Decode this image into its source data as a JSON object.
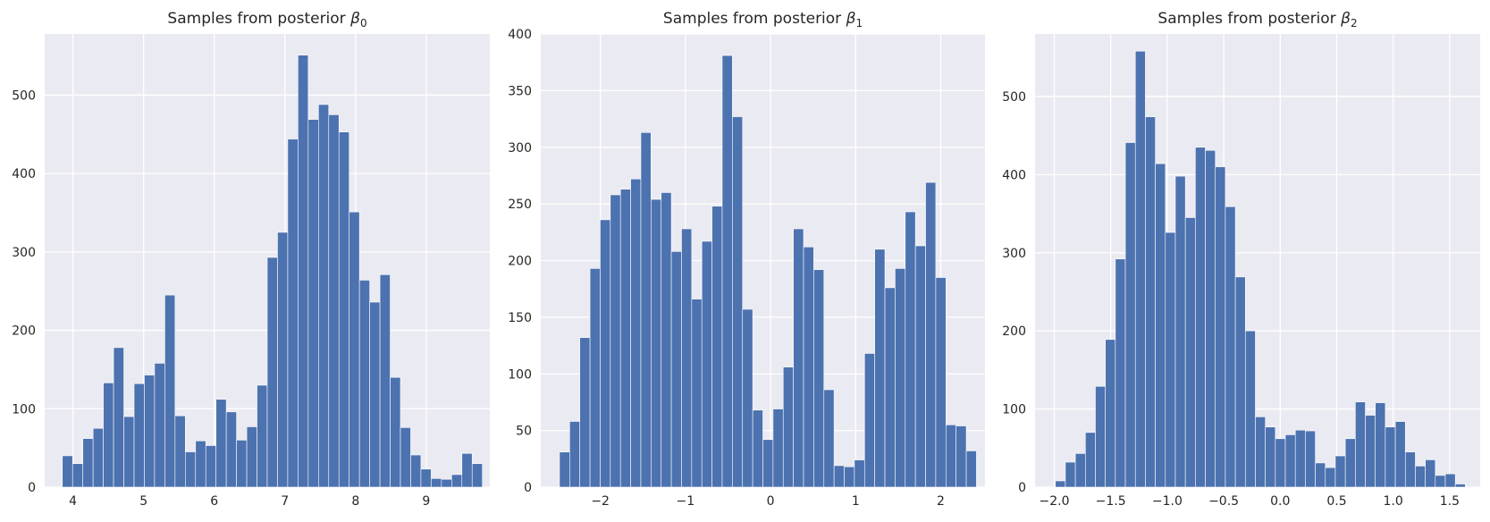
{
  "colors": {
    "bar": "#4c72b0",
    "plot_background": "#eaeaf2",
    "grid": "#ffffff",
    "text": "#262626"
  },
  "chart_data": [
    {
      "type": "bar",
      "title": {
        "prefix": "Samples from posterior ",
        "symbol": "β",
        "subscript": "0"
      },
      "grid": true,
      "xlim": [
        3.6,
        9.9
      ],
      "ylim": [
        0,
        578
      ],
      "xticks": [
        4,
        5,
        6,
        7,
        8,
        9
      ],
      "xtick_labels": [
        "4",
        "5",
        "6",
        "7",
        "8",
        "9"
      ],
      "yticks": [
        0,
        100,
        200,
        300,
        400,
        500
      ],
      "ytick_labels": [
        "0",
        "100",
        "200",
        "300",
        "400",
        "500"
      ],
      "bin_start": 3.85,
      "bin_width": 0.145,
      "values": [
        40,
        30,
        62,
        75,
        133,
        178,
        90,
        132,
        143,
        158,
        245,
        91,
        45,
        59,
        53,
        112,
        96,
        60,
        77,
        130,
        293,
        325,
        444,
        551,
        469,
        488,
        475,
        453,
        351,
        264,
        236,
        271,
        140,
        76,
        41,
        23,
        11,
        10,
        16,
        43,
        30
      ]
    },
    {
      "type": "bar",
      "title": {
        "prefix": "Samples from posterior ",
        "symbol": "β",
        "subscript": "1"
      },
      "grid": true,
      "xlim": [
        -2.7,
        2.52
      ],
      "ylim": [
        0,
        400
      ],
      "xticks": [
        -2,
        -1,
        0,
        1,
        2
      ],
      "xtick_labels": [
        "−2",
        "−1",
        "0",
        "1",
        "2"
      ],
      "yticks": [
        0,
        50,
        100,
        150,
        200,
        250,
        300,
        350,
        400
      ],
      "ytick_labels": [
        "0",
        "50",
        "100",
        "150",
        "200",
        "250",
        "300",
        "350",
        "400"
      ],
      "bin_start": -2.48,
      "bin_width": 0.1195,
      "values": [
        31,
        58,
        132,
        193,
        236,
        258,
        263,
        272,
        313,
        254,
        260,
        208,
        228,
        166,
        217,
        248,
        381,
        327,
        157,
        68,
        42,
        69,
        106,
        228,
        212,
        192,
        86,
        19,
        18,
        24,
        118,
        210,
        176,
        193,
        243,
        213,
        269,
        185,
        55,
        54,
        32
      ]
    },
    {
      "type": "bar",
      "title": {
        "prefix": "Samples from posterior ",
        "symbol": "β",
        "subscript": "2"
      },
      "grid": true,
      "xlim": [
        -2.17,
        1.77
      ],
      "ylim": [
        0,
        580
      ],
      "xticks": [
        -2.0,
        -1.5,
        -1.0,
        -0.5,
        0.0,
        0.5,
        1.0,
        1.5
      ],
      "xtick_labels": [
        "−2.0",
        "−1.5",
        "−1.0",
        "−0.5",
        "0.0",
        "0.5",
        "1.0",
        "1.5"
      ],
      "yticks": [
        0,
        100,
        200,
        300,
        400,
        500
      ],
      "ytick_labels": [
        "0",
        "100",
        "200",
        "300",
        "400",
        "500"
      ],
      "bin_start": -1.99,
      "bin_width": 0.0885,
      "values": [
        8,
        32,
        43,
        70,
        129,
        189,
        292,
        441,
        558,
        474,
        414,
        326,
        398,
        345,
        435,
        431,
        410,
        359,
        269,
        200,
        90,
        77,
        62,
        67,
        73,
        72,
        31,
        25,
        40,
        62,
        109,
        92,
        108,
        77,
        84,
        45,
        27,
        35,
        15,
        17,
        4
      ]
    }
  ]
}
